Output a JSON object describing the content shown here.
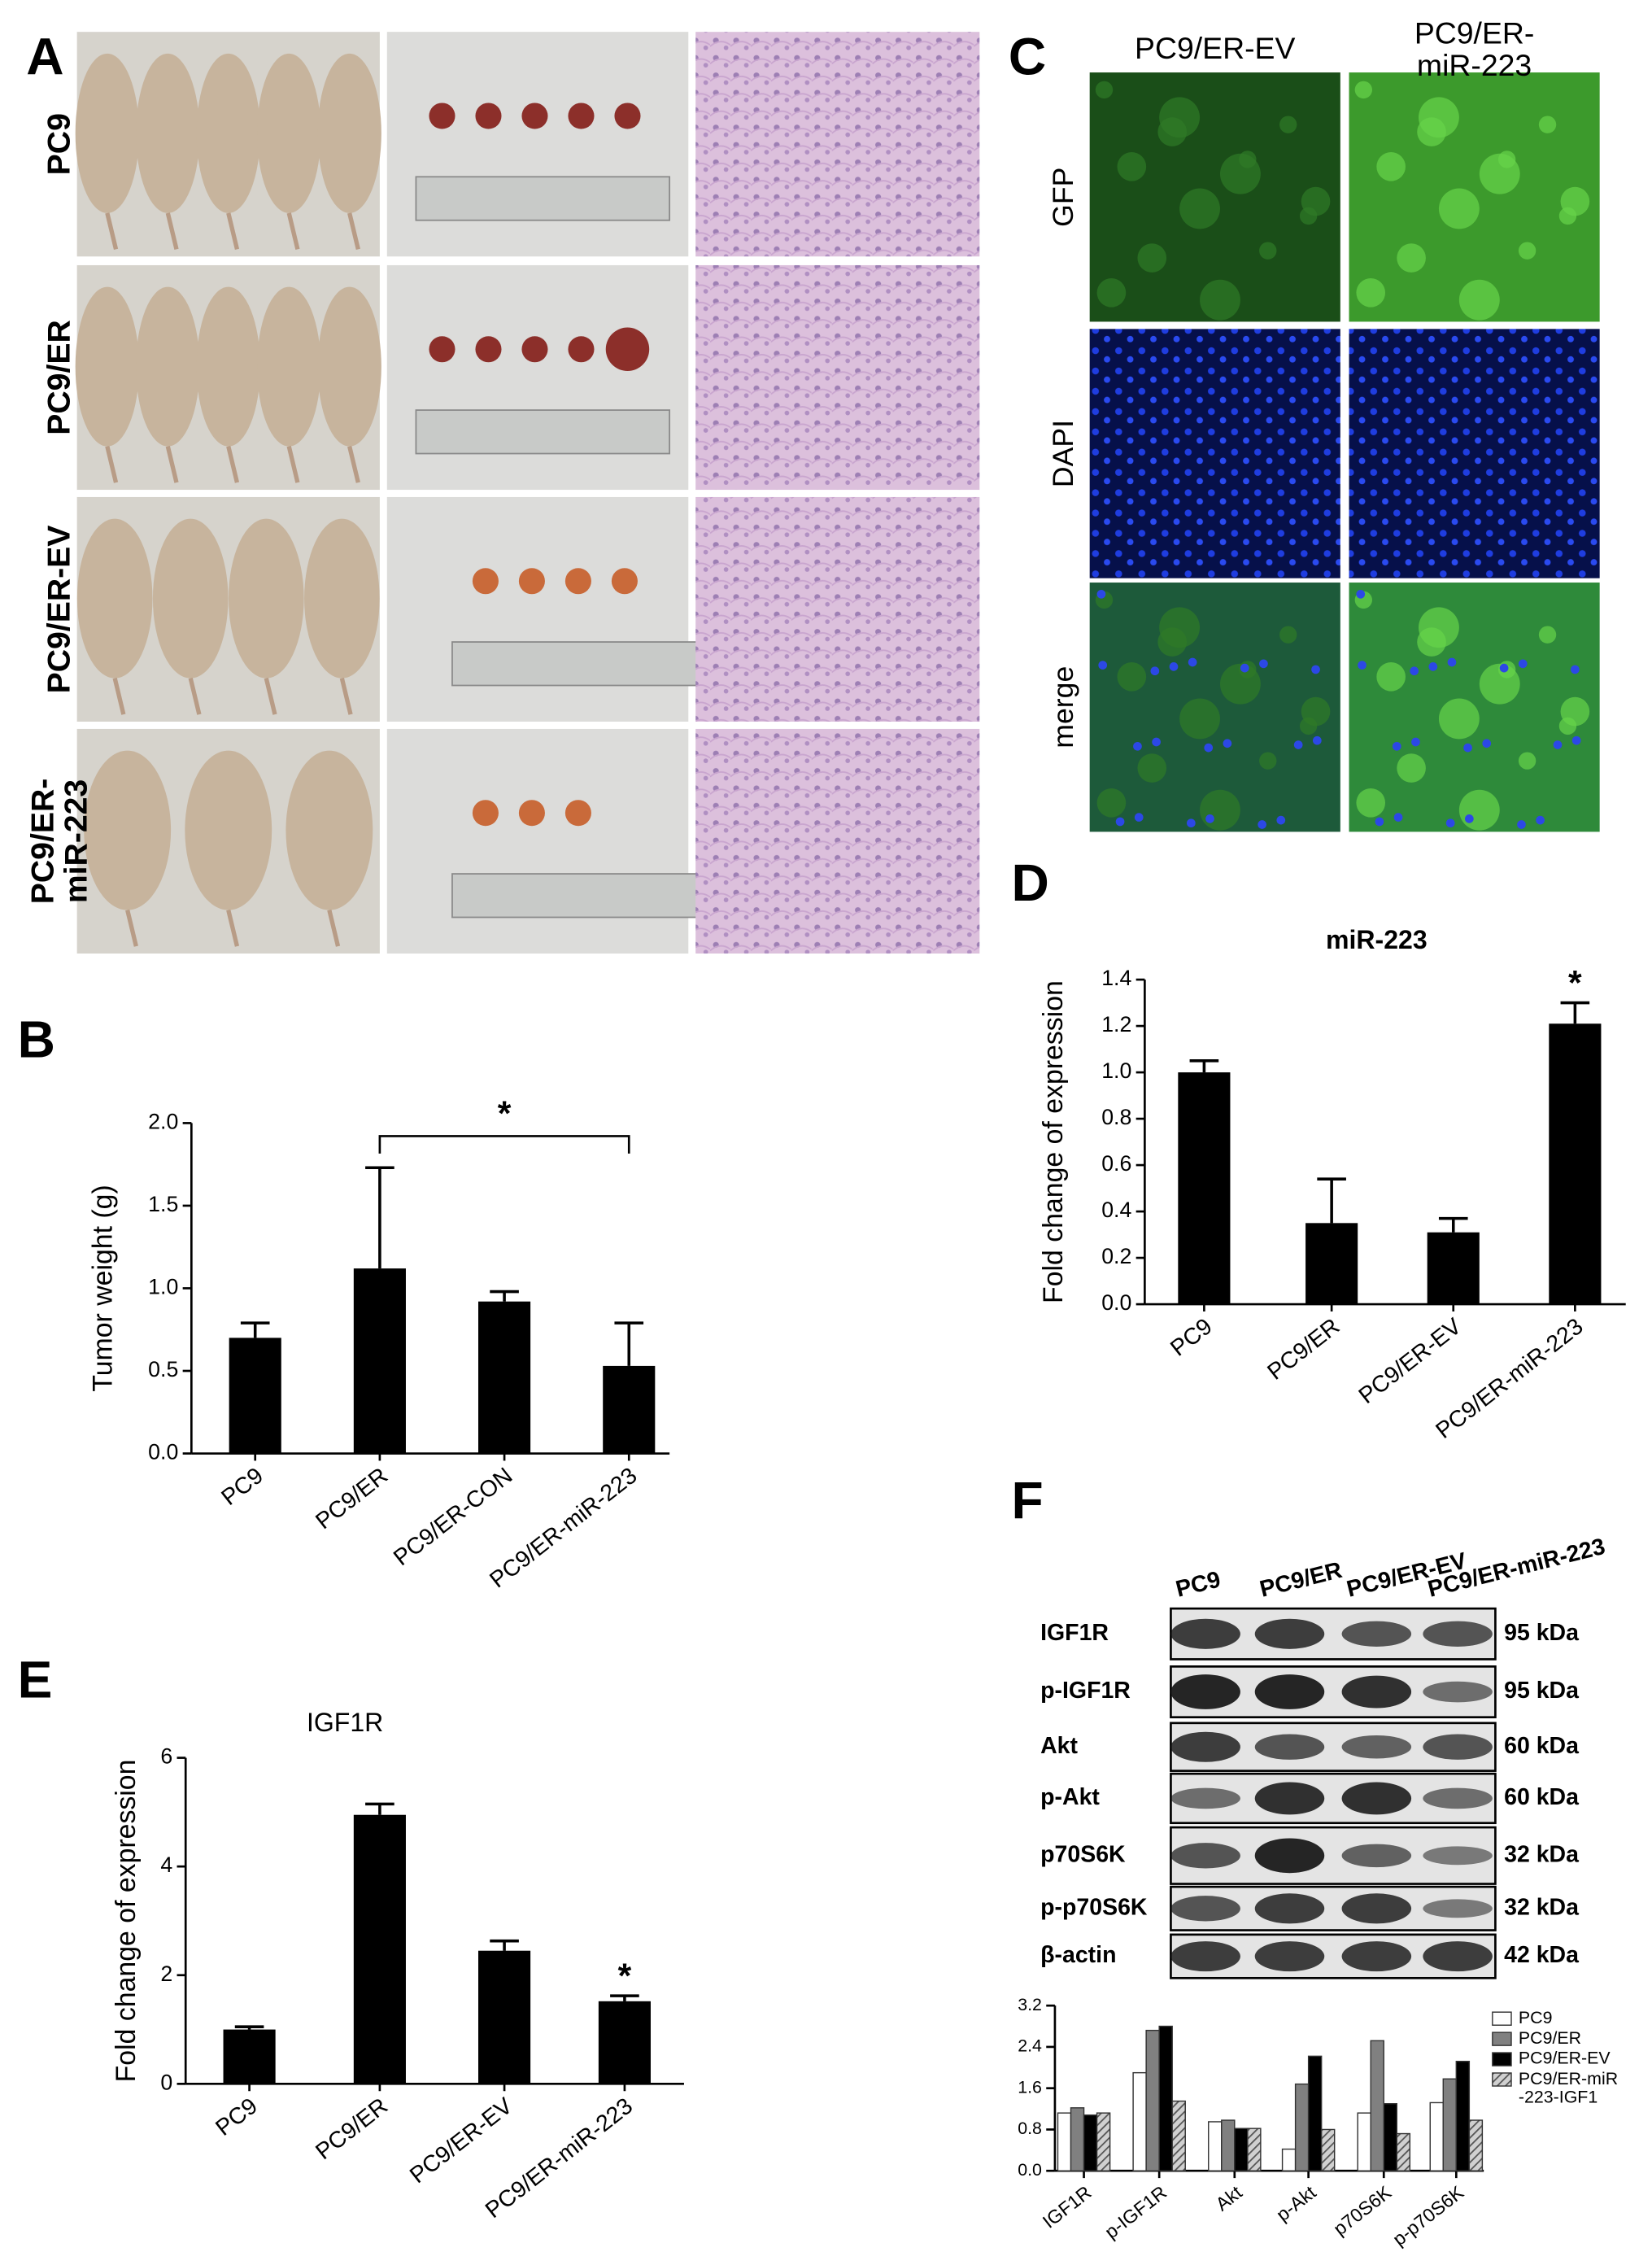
{
  "panel_labels": {
    "a": "A",
    "b": "B",
    "c": "C",
    "d": "D",
    "e": "E",
    "f": "F"
  },
  "panel_a": {
    "rows": [
      "PC9",
      "PC9/ER",
      "PC9/ER-EV",
      "PC9/ER-miR-223"
    ]
  },
  "panel_c": {
    "columns": [
      "PC9/ER-EV",
      "PC9/ER-miR-223"
    ],
    "rows": [
      "GFP",
      "DAPI",
      "merge"
    ]
  },
  "panel_f_blot": {
    "lanes": [
      "PC9",
      "PC9/ER",
      "PC9/ER-EV",
      "PC9/ER-miR-223"
    ],
    "proteins": [
      "IGF1R",
      "p-IGF1R",
      "Akt",
      "p-Akt",
      "p70S6K",
      "p-p70S6K",
      "β-actin"
    ],
    "sizes": [
      "95 kDa",
      "95 kDa",
      "60 kDa",
      "60 kDa",
      "32 kDa",
      "32 kDa",
      "42 kDa"
    ]
  },
  "chart_data": [
    {
      "type": "bar",
      "ylabel": "Tumor weight (g)",
      "categories": [
        "PC9",
        "PC9/ER",
        "PC9/ER-CON",
        "PC9/ER-miR-223"
      ],
      "values": [
        0.7,
        1.12,
        0.92,
        0.53
      ],
      "errors": [
        0.09,
        0.61,
        0.06,
        0.26
      ],
      "color": "#000000",
      "ylim": [
        0,
        2
      ],
      "yticks": [
        {
          "value": 0,
          "label": "0.0"
        },
        0.5,
        {
          "value": 1,
          "label": "1.0"
        },
        1.5,
        {
          "value": 2,
          "label": "2.0"
        }
      ],
      "annotation": "*"
    },
    {
      "type": "bar",
      "title": "miR-223",
      "ylabel": "Fold change of expression",
      "categories": [
        "PC9",
        "PC9/ER",
        "PC9/ER-EV",
        "PC9/ER-miR-223"
      ],
      "values": [
        1.0,
        0.35,
        0.31,
        1.21
      ],
      "errors": [
        0.05,
        0.19,
        0.06,
        0.09
      ],
      "color": "#000000",
      "ylim": [
        0,
        1.4
      ],
      "yticks": [
        {
          "value": 0,
          "label": "0.0"
        },
        0.2,
        0.4,
        0.6,
        0.8,
        {
          "value": 1,
          "label": "1.0"
        },
        1.2,
        1.4
      ],
      "annotation": "*"
    },
    {
      "type": "bar",
      "title": "IGF1R",
      "ylabel": "Fold change of expression",
      "categories": [
        "PC9",
        "PC9/ER",
        "PC9/ER-EV",
        "PC9/ER-miR-223"
      ],
      "values": [
        1.0,
        4.95,
        2.45,
        1.52
      ],
      "errors": [
        0.05,
        0.2,
        0.18,
        0.1
      ],
      "color": "#000000",
      "ylim": [
        0,
        6
      ],
      "yticks": [
        0,
        2,
        4,
        6
      ],
      "annotation": "*"
    },
    {
      "type": "bar",
      "categories": [
        "IGF1R",
        "p-IGF1R",
        "Akt",
        "p-Akt",
        "p70S6K",
        "p-p70S6K"
      ],
      "series": [
        {
          "name": "PC9",
          "color": "#ffffff",
          "values": [
            1.12,
            1.9,
            0.95,
            0.42,
            1.12,
            1.32
          ]
        },
        {
          "name": "PC9/ER",
          "color": "#808080",
          "values": [
            1.22,
            2.72,
            0.98,
            1.68,
            2.52,
            1.78
          ]
        },
        {
          "name": "PC9/ER-EV",
          "color": "#000000",
          "values": [
            1.08,
            2.8,
            0.82,
            2.22,
            1.3,
            2.12
          ]
        },
        {
          "name": "PC9/ER-miR-223-IGF1",
          "color": "#808080",
          "hatch": true,
          "values": [
            1.12,
            1.35,
            0.82,
            0.8,
            0.72,
            0.98
          ]
        }
      ],
      "ylim": [
        0,
        3.2
      ],
      "yticks": [
        {
          "value": 0,
          "label": "0.0"
        },
        0.8,
        1.6,
        2.4,
        3.2
      ],
      "legend": "right"
    }
  ]
}
